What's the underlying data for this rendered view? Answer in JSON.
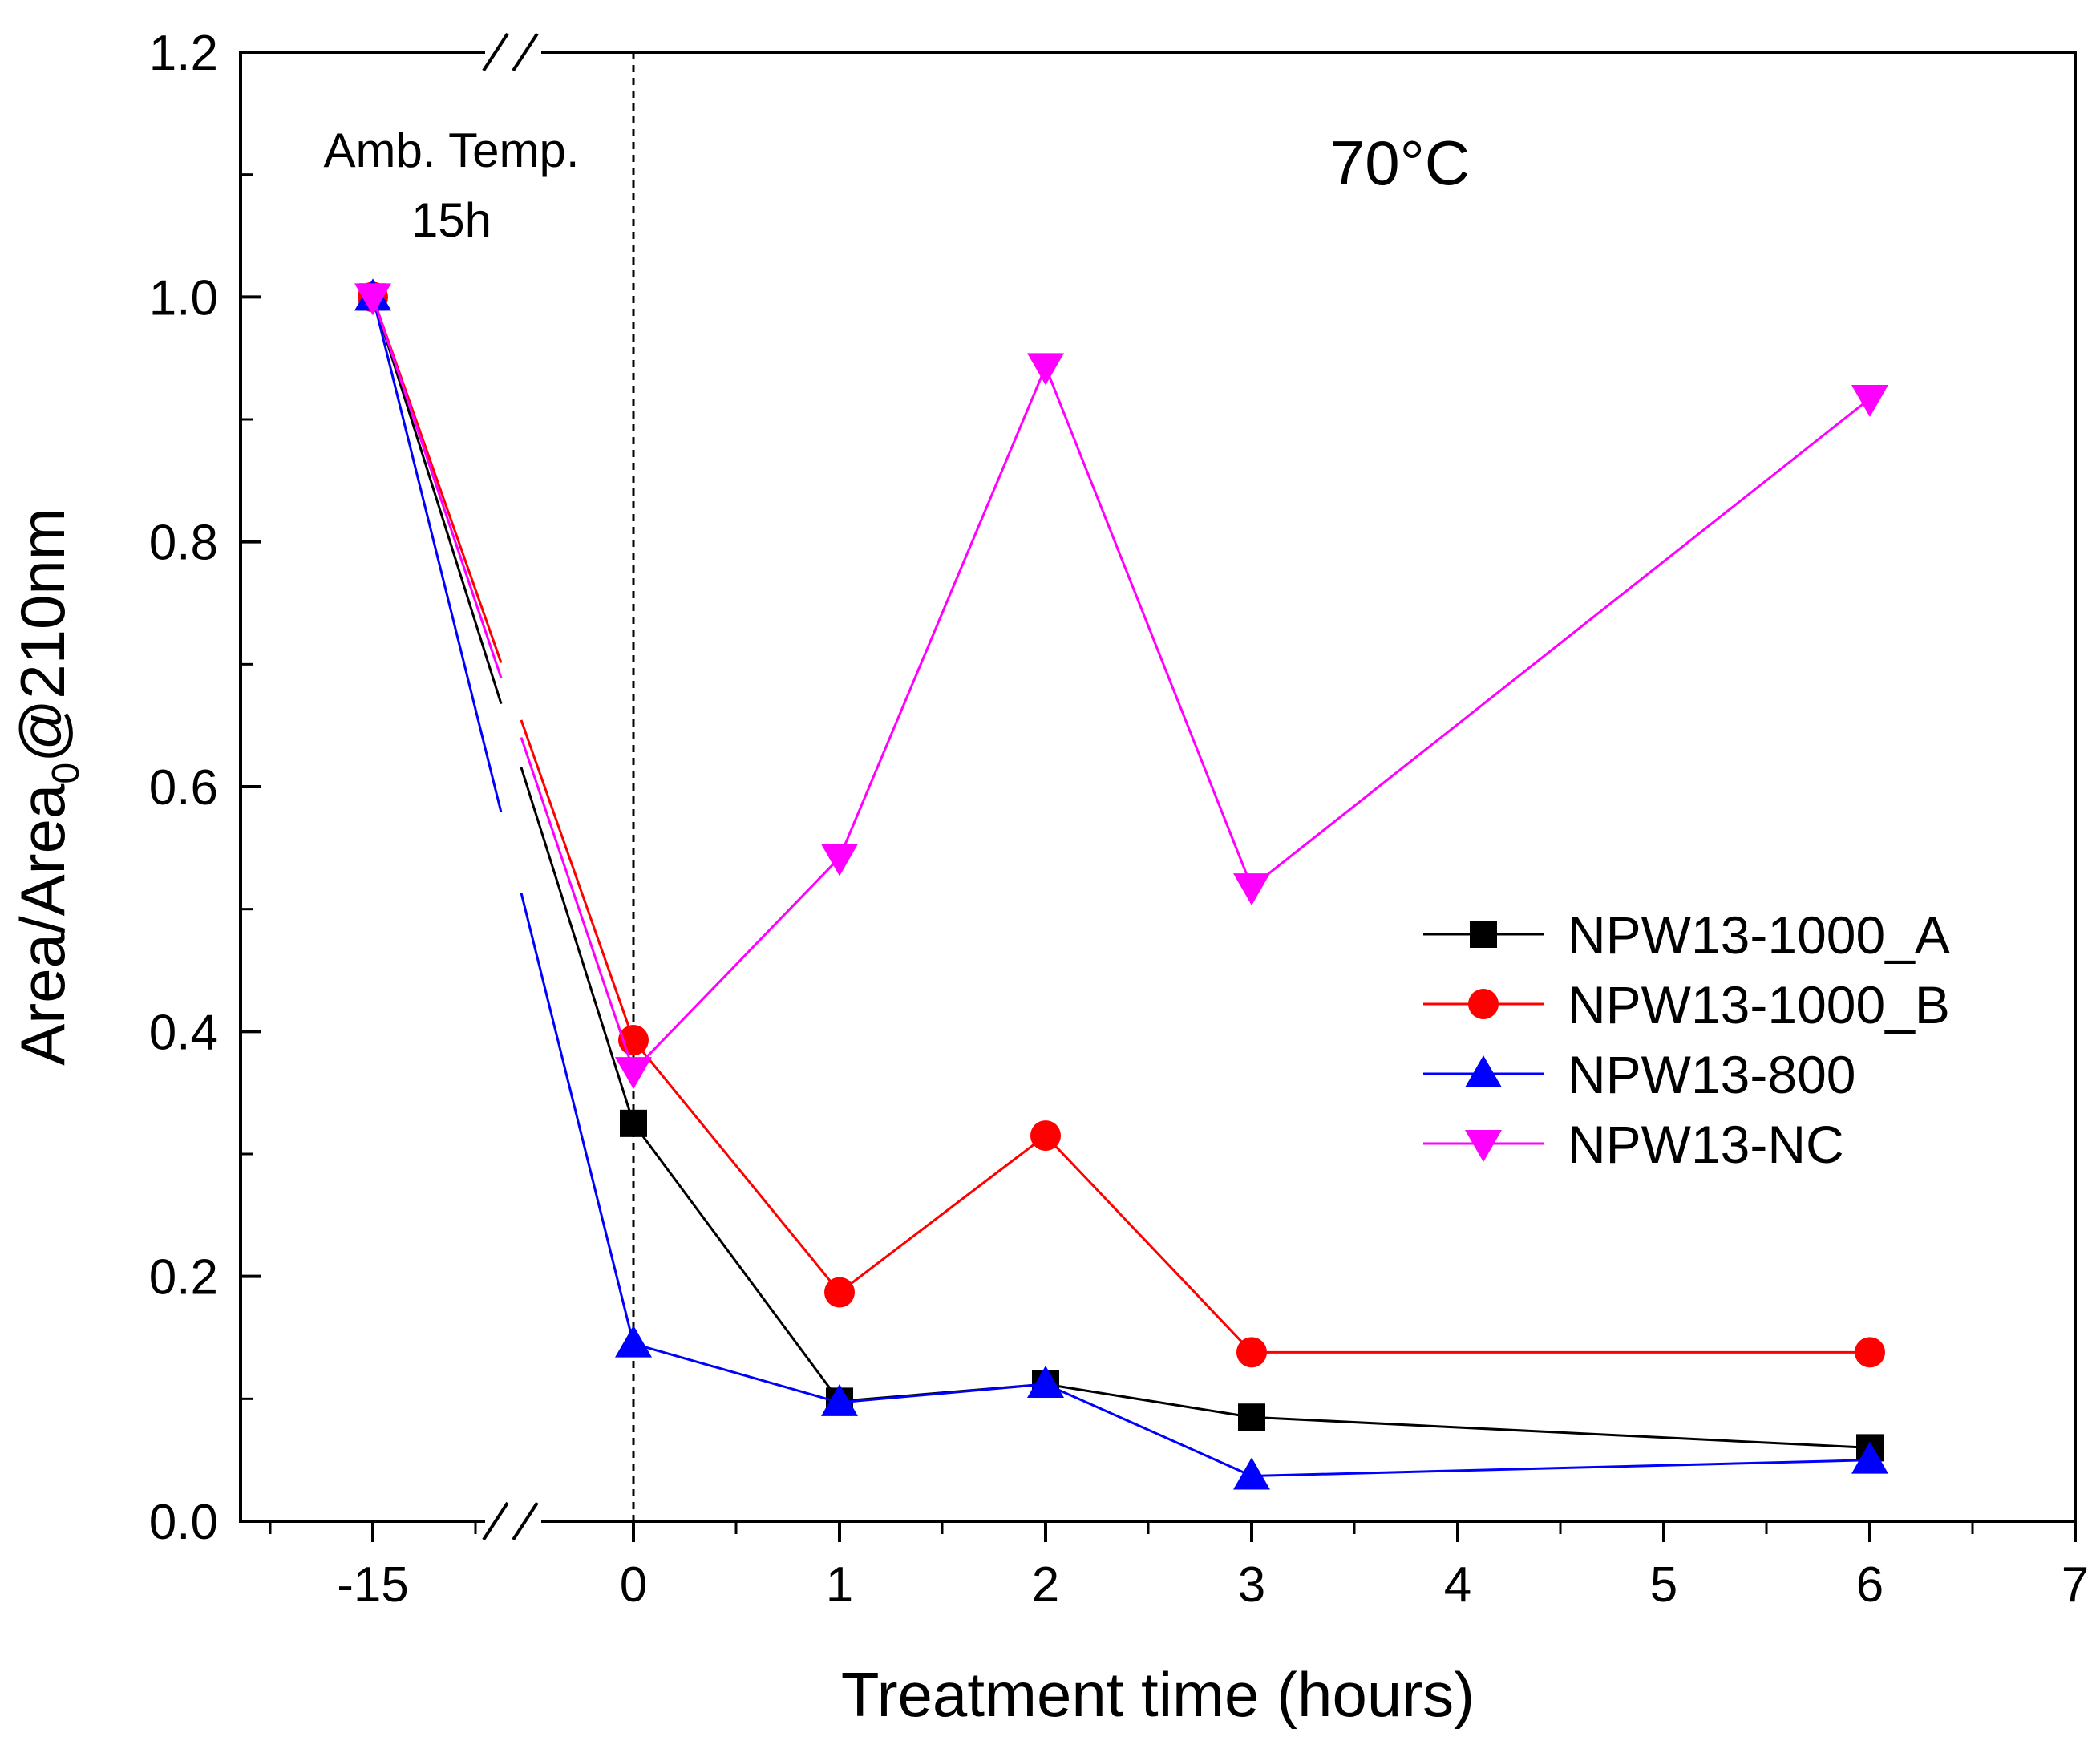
{
  "chart_data": {
    "type": "line",
    "title": "",
    "xlabel": "Treatment time (hours)",
    "ylabel_main": "Area/Area",
    "ylabel_sub": "0",
    "ylabel_tail": "@210nm",
    "ylim": [
      0,
      1.2
    ],
    "x_categories": [
      "-15",
      "0",
      "1",
      "2",
      "3",
      "6"
    ],
    "x_ticks": [
      "-15",
      "0",
      "1",
      "2",
      "3",
      "4",
      "5",
      "6",
      "7"
    ],
    "y_ticks": [
      "0.0",
      "0.2",
      "0.4",
      "0.6",
      "0.8",
      "1.0",
      "1.2"
    ],
    "axis_break": "between -15 and 0",
    "annotations": {
      "ambient_line1": "Amb. Temp.",
      "ambient_line2": "15h",
      "temperature": "70°C"
    },
    "legend_position": "center-right",
    "series": [
      {
        "name": "NPW13-1000_A",
        "color": "#000000",
        "marker": "square",
        "values": [
          1.0,
          0.325,
          0.098,
          0.112,
          0.085,
          0.06
        ]
      },
      {
        "name": "NPW13-1000_B",
        "color": "#ff0000",
        "marker": "circle",
        "values": [
          1.0,
          0.393,
          0.187,
          0.315,
          0.138,
          0.138
        ]
      },
      {
        "name": "NPW13-800",
        "color": "#0000ff",
        "marker": "triangle-up",
        "values": [
          1.0,
          0.145,
          0.097,
          0.112,
          0.037,
          0.05
        ]
      },
      {
        "name": "NPW13-NC",
        "color": "#ff00ff",
        "marker": "triangle-down",
        "values": [
          1.0,
          0.368,
          0.542,
          0.943,
          0.518,
          0.917
        ]
      }
    ]
  }
}
